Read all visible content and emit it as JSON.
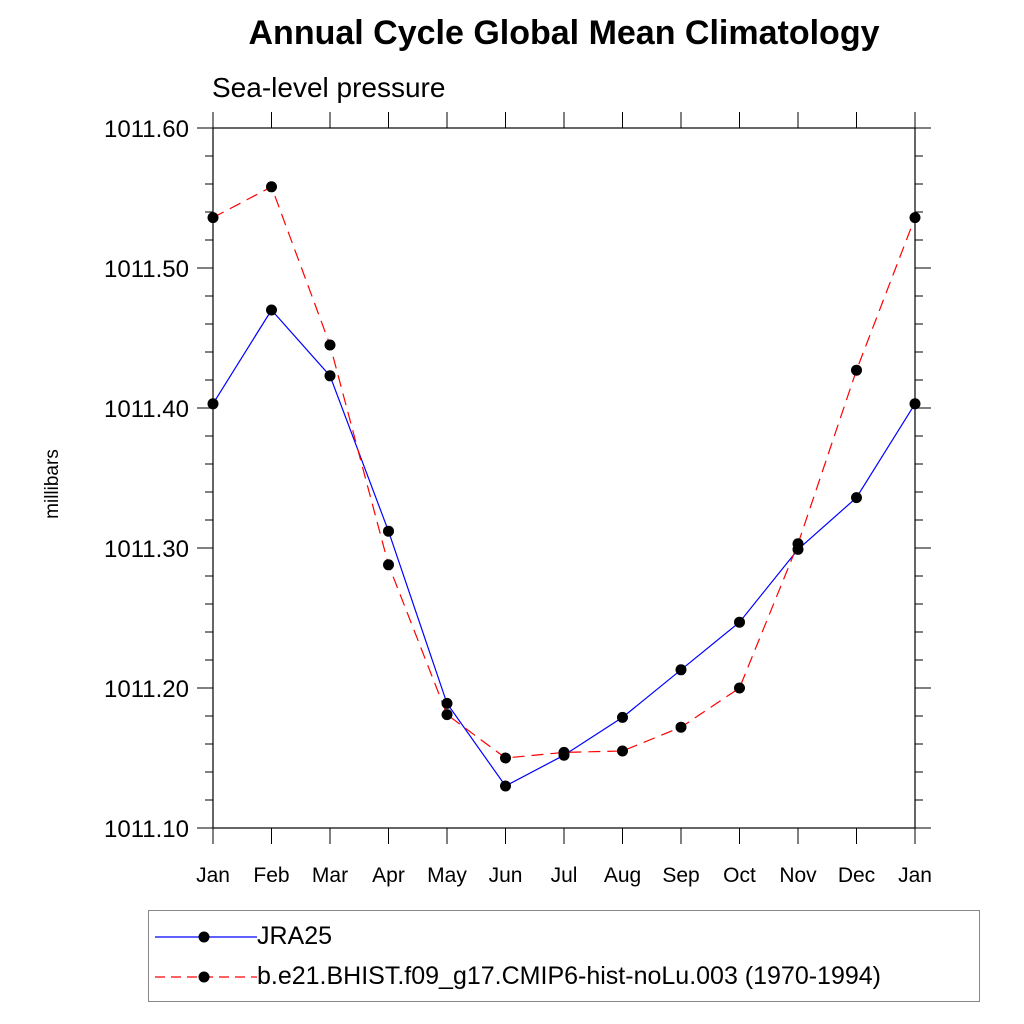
{
  "chart_data": {
    "type": "line",
    "title": "Annual Cycle Global Mean Climatology",
    "subtitle": "Sea-level pressure",
    "ylabel": "millibars",
    "xlabel": "",
    "categories": [
      "Jan",
      "Feb",
      "Mar",
      "Apr",
      "May",
      "Jun",
      "Jul",
      "Aug",
      "Sep",
      "Oct",
      "Nov",
      "Dec",
      "Jan"
    ],
    "ylim": [
      1011.1,
      1011.6
    ],
    "yticks": [
      "1011.10",
      "1011.20",
      "1011.30",
      "1011.40",
      "1011.50",
      "1011.60"
    ],
    "grid": false,
    "legend_position": "bottom",
    "series": [
      {
        "name": "JRA25",
        "color": "#0000ff",
        "style": "solid",
        "values": [
          1011.403,
          1011.47,
          1011.423,
          1011.312,
          1011.189,
          1011.13,
          1011.152,
          1011.179,
          1011.213,
          1011.247,
          1011.299,
          1011.336,
          1011.403
        ]
      },
      {
        "name": "b.e21.BHIST.f09_g17.CMIP6-hist-noLu.003 (1970-1994)",
        "color": "#ff0000",
        "style": "dashed",
        "values": [
          1011.536,
          1011.558,
          1011.445,
          1011.288,
          1011.181,
          1011.15,
          1011.154,
          1011.155,
          1011.172,
          1011.2,
          1011.303,
          1011.427,
          1011.536
        ]
      }
    ]
  }
}
